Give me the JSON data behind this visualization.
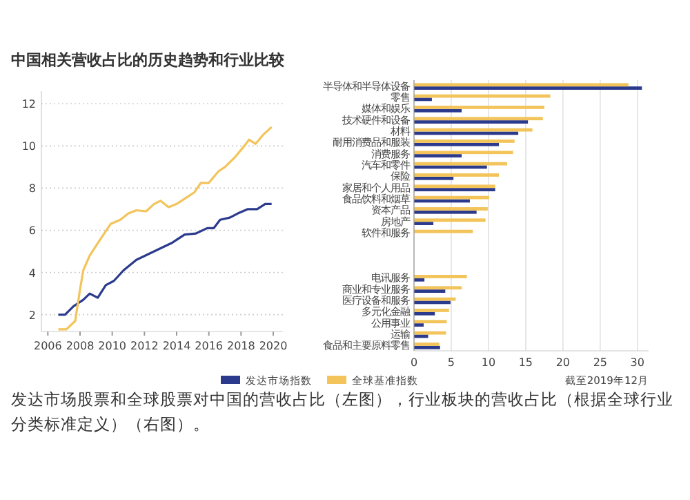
{
  "chart_data": [
    {
      "type": "line",
      "title": "中国相关营收占比的历史趋势和行业比较",
      "annotations": [
        "发达市场股票和全球股票对中国的营收占比（左图），行业板块的营收占比（根据全球行业分类标准定义）（右图）。"
      ],
      "xlim": [
        2005.6,
        2020.6
      ],
      "ylim": [
        1.2,
        12.6
      ],
      "xticks": [
        2006,
        2008,
        2010,
        2012,
        2014,
        2016,
        2018,
        2020
      ],
      "yticks": [
        2,
        4,
        6,
        8,
        10,
        12
      ],
      "grid": "y",
      "series": [
        {
          "color": "#2b3a8c",
          "x": [
            2006.65,
            2007.07,
            2007.6,
            2008.2,
            2008.6,
            2009.1,
            2009.6,
            2010.1,
            2010.7,
            2011.5,
            2012.6,
            2013.7,
            2014.5,
            2015.2,
            2015.9,
            2016.3,
            2016.7,
            2017.3,
            2017.8,
            2018.4,
            2019.0,
            2019.5,
            2019.9
          ],
          "values": [
            2.0,
            2.0,
            2.4,
            2.7,
            3.0,
            2.8,
            3.4,
            3.6,
            4.1,
            4.6,
            5.0,
            5.4,
            5.8,
            5.85,
            6.1,
            6.1,
            6.5,
            6.6,
            6.8,
            7.0,
            7.0,
            7.25,
            7.25
          ]
        },
        {
          "color": "#f2c45a",
          "x": [
            2006.65,
            2007.15,
            2007.7,
            2008.0,
            2008.2,
            2008.6,
            2009.2,
            2009.9,
            2010.5,
            2011.0,
            2011.5,
            2012.1,
            2012.6,
            2013.0,
            2013.5,
            2014.0,
            2014.6,
            2015.1,
            2015.5,
            2016.0,
            2016.6,
            2017.0,
            2017.6,
            2018.2,
            2018.5,
            2018.9,
            2019.4,
            2019.9
          ],
          "values": [
            1.3,
            1.3,
            1.7,
            3.2,
            4.1,
            4.8,
            5.5,
            6.3,
            6.5,
            6.8,
            6.95,
            6.9,
            7.25,
            7.4,
            7.1,
            7.25,
            7.55,
            7.8,
            8.25,
            8.25,
            8.8,
            9.0,
            9.45,
            10.0,
            10.3,
            10.1,
            10.55,
            10.9
          ]
        }
      ]
    },
    {
      "type": "bar",
      "orientation": "horizontal",
      "legend": "bottom",
      "grid": "x",
      "xlim": [
        0,
        31.5
      ],
      "xticks": [
        0,
        5,
        10,
        15,
        20,
        25,
        30
      ],
      "annotations": [
        "截至2019年12月"
      ],
      "categories": [
        "半导体和半导体设备",
        "零售",
        "媒体和娱乐",
        "技术硬件和设备",
        "材料",
        "耐用消费品和服装",
        "消费服务",
        "汽车和零件",
        "保险",
        "家居和个人用品",
        "食品饮料和烟草",
        "资本产品",
        "房地产",
        "软件和服务",
        null,
        null,
        null,
        "电讯服务",
        "商业和专业服务",
        "医疗设备和服务",
        "多元化金融",
        "公用事业",
        "运输",
        "食品和主要原料零售"
      ],
      "series": [
        {
          "name": "发达市场指数",
          "color": "#2b3a8c",
          "values": [
            30.6,
            2.4,
            6.4,
            15.3,
            14.0,
            11.4,
            6.4,
            9.8,
            5.3,
            10.9,
            7.5,
            8.4,
            2.6,
            null,
            null,
            null,
            null,
            1.4,
            4.2,
            4.9,
            2.8,
            1.3,
            1.9,
            3.5
          ]
        },
        {
          "name": "全球基准指数",
          "color": "#f2c45a",
          "values": [
            28.8,
            18.3,
            17.5,
            17.3,
            15.9,
            13.5,
            13.3,
            12.5,
            11.4,
            10.9,
            10.1,
            9.9,
            9.6,
            7.9,
            null,
            null,
            null,
            7.1,
            6.4,
            5.6,
            4.7,
            4.4,
            4.3,
            3.4
          ]
        }
      ]
    }
  ]
}
